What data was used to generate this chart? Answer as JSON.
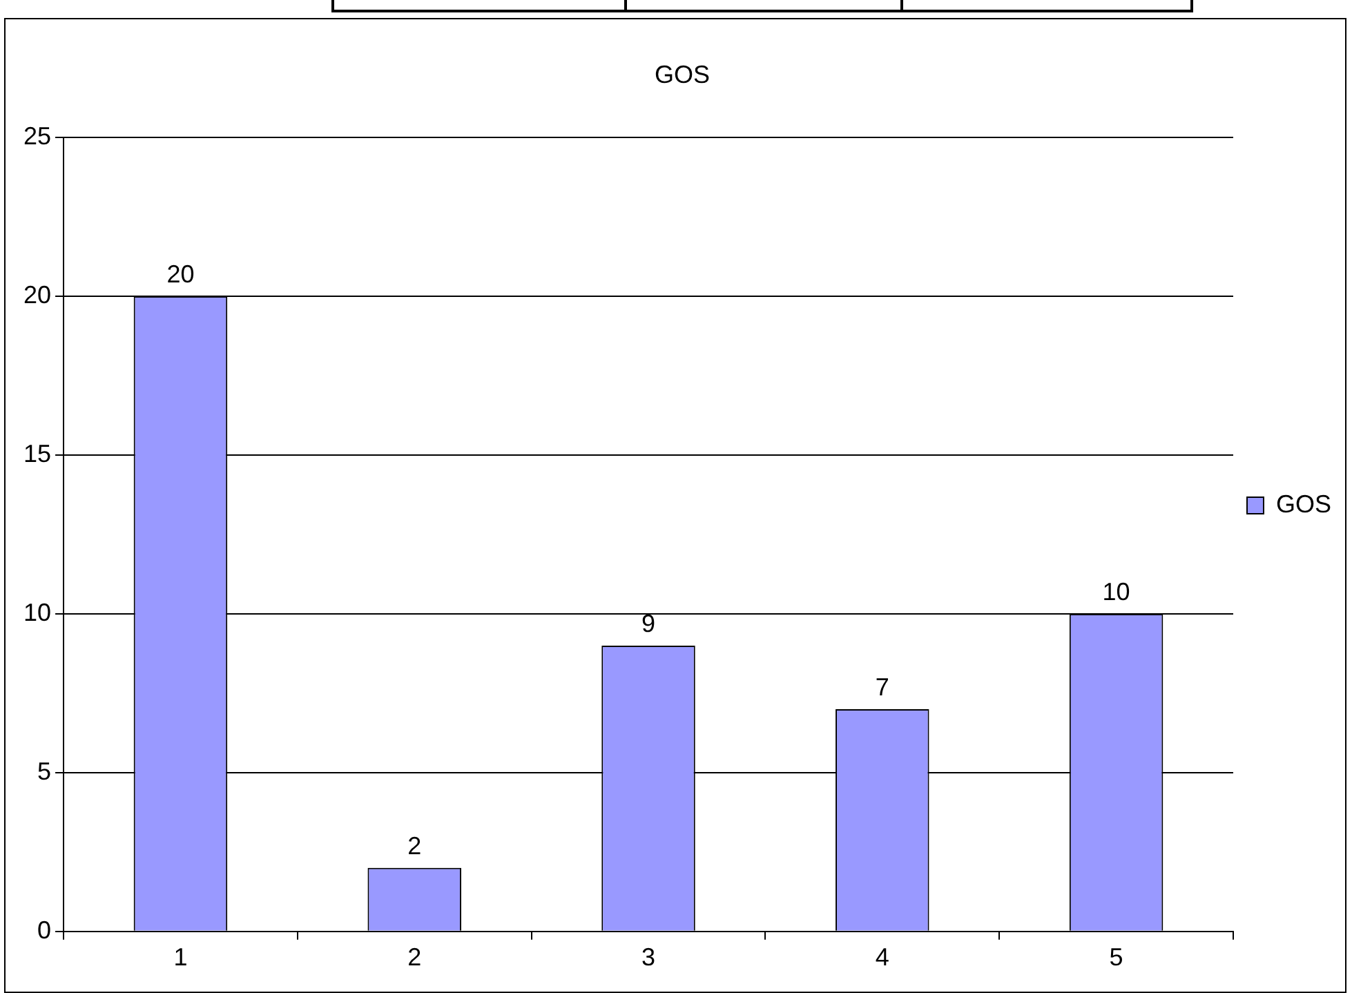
{
  "chart_data": {
    "type": "bar",
    "title": "GOS",
    "categories": [
      "1",
      "2",
      "3",
      "4",
      "5"
    ],
    "series": [
      {
        "name": "GOS",
        "color": "#9999ff",
        "values": [
          20,
          2,
          9,
          7,
          10
        ]
      }
    ],
    "ylim": [
      0,
      25
    ],
    "yticks": [
      0,
      5,
      10,
      15,
      20,
      25
    ],
    "grid": "y",
    "legend": "right",
    "data_labels": true
  }
}
